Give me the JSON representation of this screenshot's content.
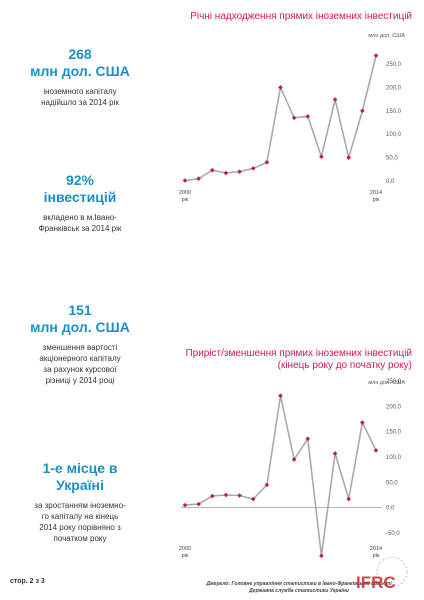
{
  "stats": [
    {
      "big1": "268",
      "big2": "млн дол. США",
      "desc1": "іноземного капіталу",
      "desc2": "надійшло за 2014 рік",
      "desc3": ""
    },
    {
      "big1": "92%",
      "big2": "інвестицій",
      "desc1": "вкладено в м.Івано-",
      "desc2": "Франківськ за 2014 рік",
      "desc3": ""
    },
    {
      "big1": "151",
      "big2": "млн дол. США",
      "desc1": "зменшення вартості",
      "desc2": "акціонерного капіталу",
      "desc3": "за рахунок курсової",
      "desc4": "різниці  у 2014 році"
    },
    {
      "big1": "1-е місце в",
      "big2": "Україні",
      "desc1": "за зростанням іноземно-",
      "desc2": "го капіталу на кінець",
      "desc3": "2014 року порівняно з",
      "desc4": "початком року"
    }
  ],
  "chart1": {
    "title": "Річні надходження прямих іноземних інвестицій",
    "unit": "млн дол. США",
    "x_start": "2000",
    "x_start2": "рік",
    "x_end": "2014",
    "x_end2": "рік"
  },
  "chart2": {
    "title1": "Приріст/зменшення прямих іноземних інвестицій",
    "title2": "(кінець року до початку року)",
    "unit": "млн дол. США",
    "x_start": "2000",
    "x_start2": "рік",
    "x_end": "2014",
    "x_end2": "рік"
  },
  "chart_data": [
    {
      "type": "line",
      "title": "Річні надходження прямих іноземних інвестицій",
      "ylabel": "млн дол. США",
      "x": [
        2000,
        2001,
        2002,
        2003,
        2004,
        2005,
        2006,
        2007,
        2008,
        2009,
        2010,
        2011,
        2012,
        2013,
        2014
      ],
      "y": [
        1,
        5,
        23,
        17,
        20,
        27,
        40,
        200,
        135,
        138,
        52,
        174,
        50,
        150,
        268
      ],
      "yticks": [
        "0,0",
        "50,0",
        "100,0",
        "150,0",
        "200,0",
        "250,0"
      ],
      "ylim": [
        0,
        250
      ],
      "line_color": "#aaaaaa",
      "marker_color": "#c2185b"
    },
    {
      "type": "line",
      "title": "Приріст/зменшення прямих іноземних інвестицій (кінець року до початку року)",
      "ylabel": "млн дол. США",
      "x": [
        2000,
        2001,
        2002,
        2003,
        2004,
        2005,
        2006,
        2007,
        2008,
        2009,
        2010,
        2011,
        2012,
        2013,
        2014
      ],
      "y": [
        5,
        7,
        23,
        25,
        24,
        17,
        45,
        221,
        95,
        136,
        -95,
        107,
        17,
        168,
        113
      ],
      "yticks": [
        "-50,0",
        "0,0",
        "50,0",
        "100,0",
        "150,0",
        "200,0",
        "250,0"
      ],
      "ylim": [
        -50,
        250
      ],
      "line_color": "#aaaaaa",
      "marker_color": "#c2185b"
    }
  ],
  "footer": {
    "page": "стор. 2 з 3",
    "source1": "Джерело: Головне управління статистики в Івано-Франківській області",
    "source2": "Державна служба статистики України",
    "logo_text": "IFRC",
    "logo_ring": "IVANO-FRANKIVSK REGIONAL CENTER"
  },
  "colors": {
    "accent_blue": "#1d8fc2",
    "accent_pink": "#d4185a",
    "line_gray": "#aaaaaa",
    "logo_red": "#c62828"
  }
}
